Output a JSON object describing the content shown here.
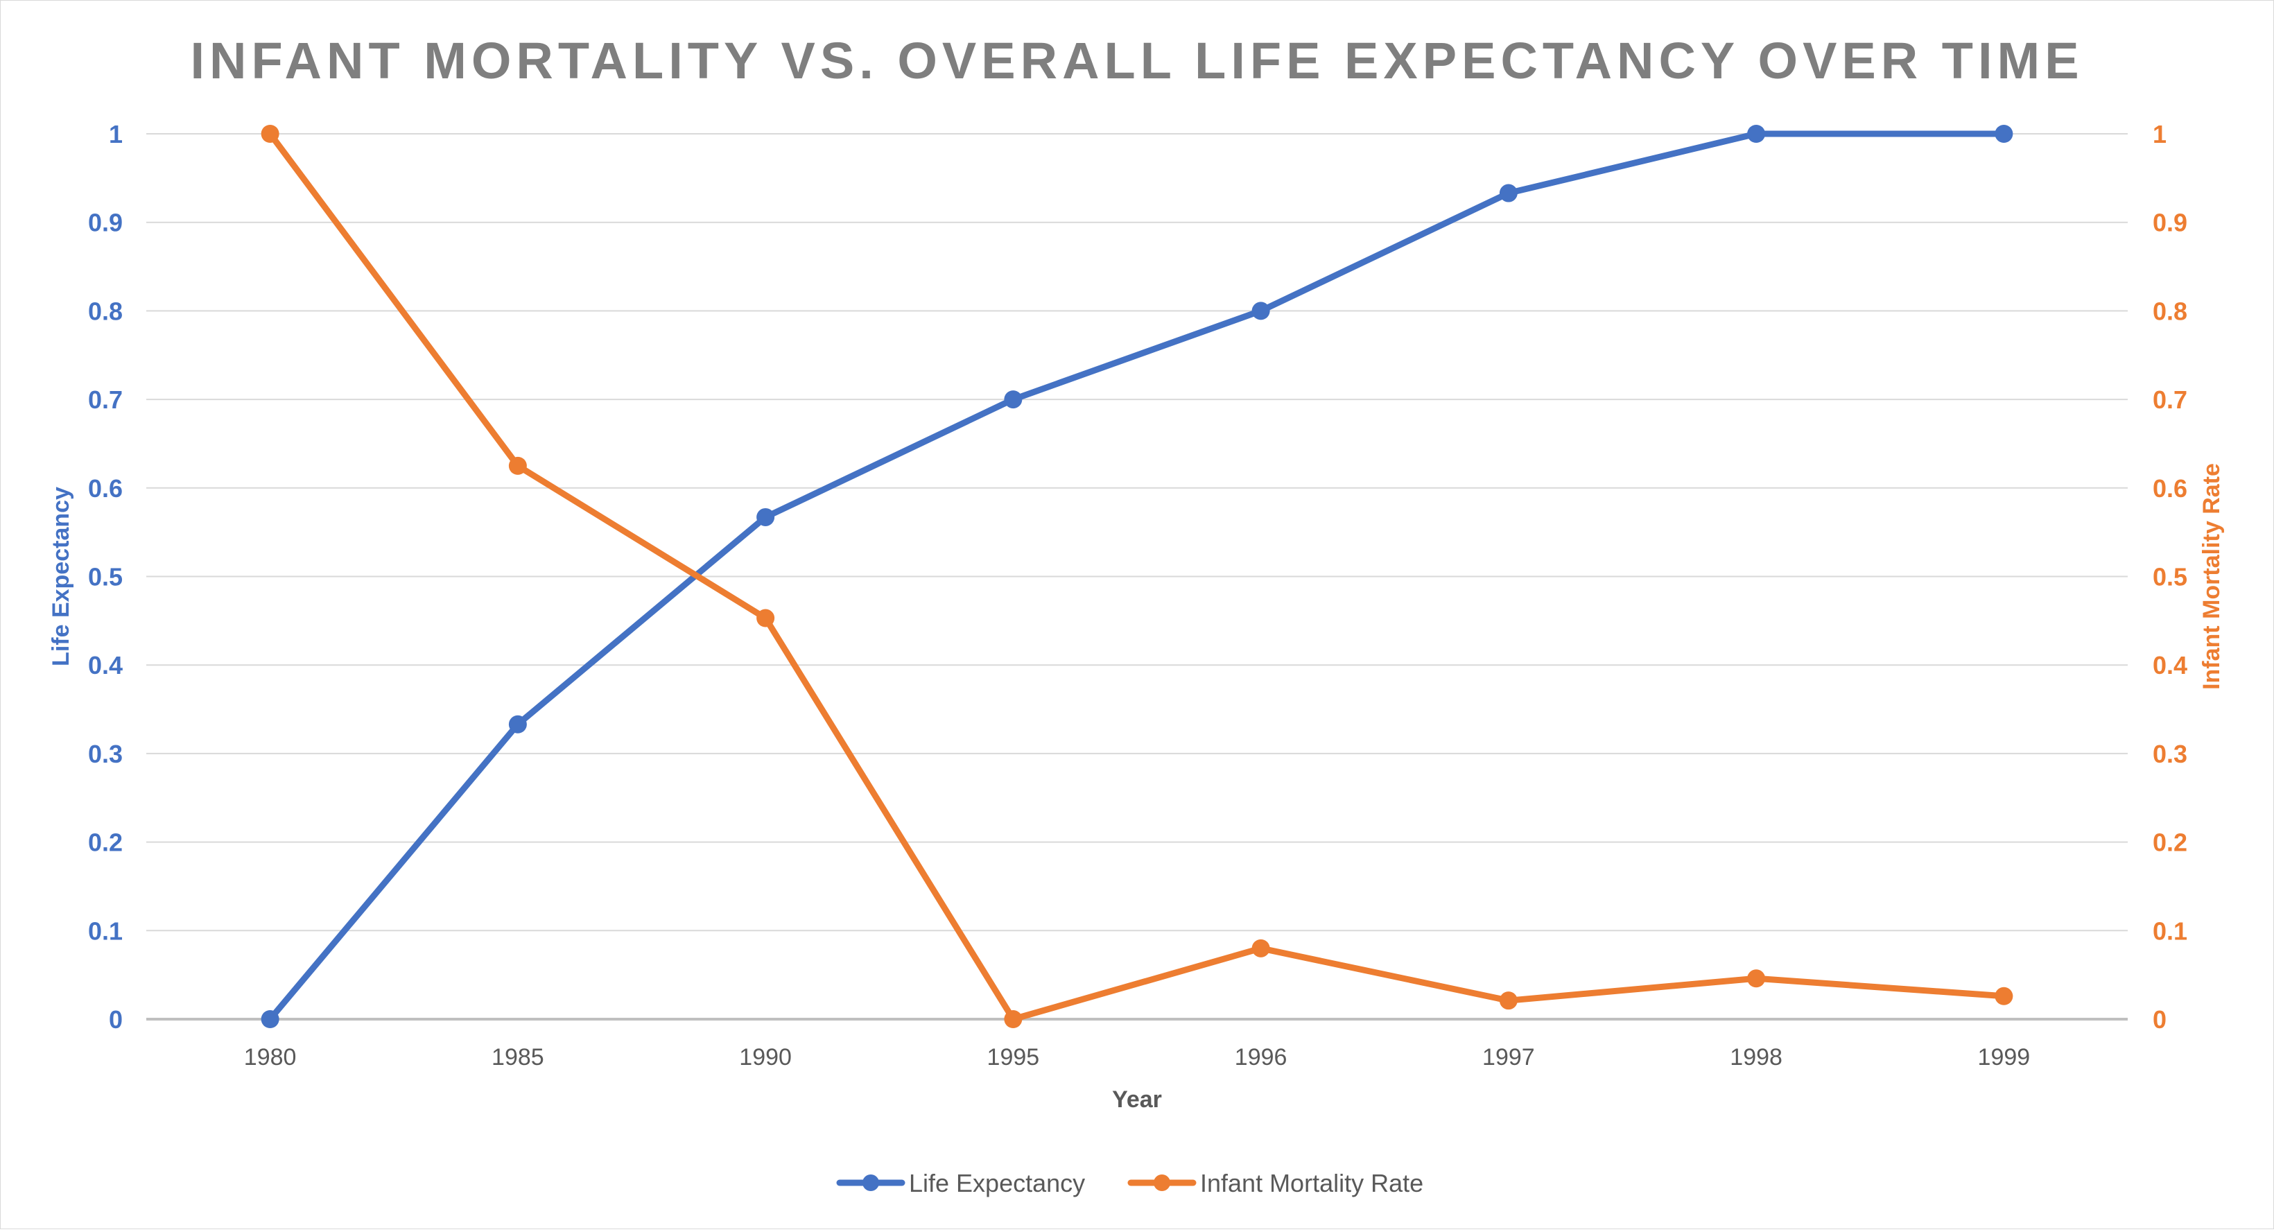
{
  "chart_data": {
    "type": "line",
    "title": "INFANT MORTALITY VS. OVERALL LIFE EXPECTANCY OVER TIME",
    "xlabel": "Year",
    "ylabel_left": "Life Expectancy",
    "ylabel_right": "Infant Mortality Rate",
    "categories": [
      "1980",
      "1985",
      "1990",
      "1995",
      "1996",
      "1997",
      "1998",
      "1999"
    ],
    "y_ticks": [
      "0",
      "0.1",
      "0.2",
      "0.3",
      "0.4",
      "0.5",
      "0.6",
      "0.7",
      "0.8",
      "0.9",
      "1"
    ],
    "ylim_left": [
      0,
      1
    ],
    "ylim_right": [
      0,
      1
    ],
    "grid": true,
    "legend_position": "bottom",
    "series": [
      {
        "name": "Life Expectancy",
        "axis": "left",
        "color": "#4472C4",
        "values": [
          0,
          0.333,
          0.567,
          0.7,
          0.8,
          0.933,
          1,
          1
        ]
      },
      {
        "name": "Infant Mortality Rate",
        "axis": "right",
        "color": "#ED7D31",
        "values": [
          1,
          0.625,
          0.453,
          0,
          0.08,
          0.021,
          0.046,
          0.026
        ]
      }
    ],
    "colors": {
      "title": "#7F7F7F",
      "gridline": "#D9D9D9",
      "axis_line": "#BFBFBF",
      "x_tick": "#595959",
      "x_title": "#595959"
    }
  }
}
